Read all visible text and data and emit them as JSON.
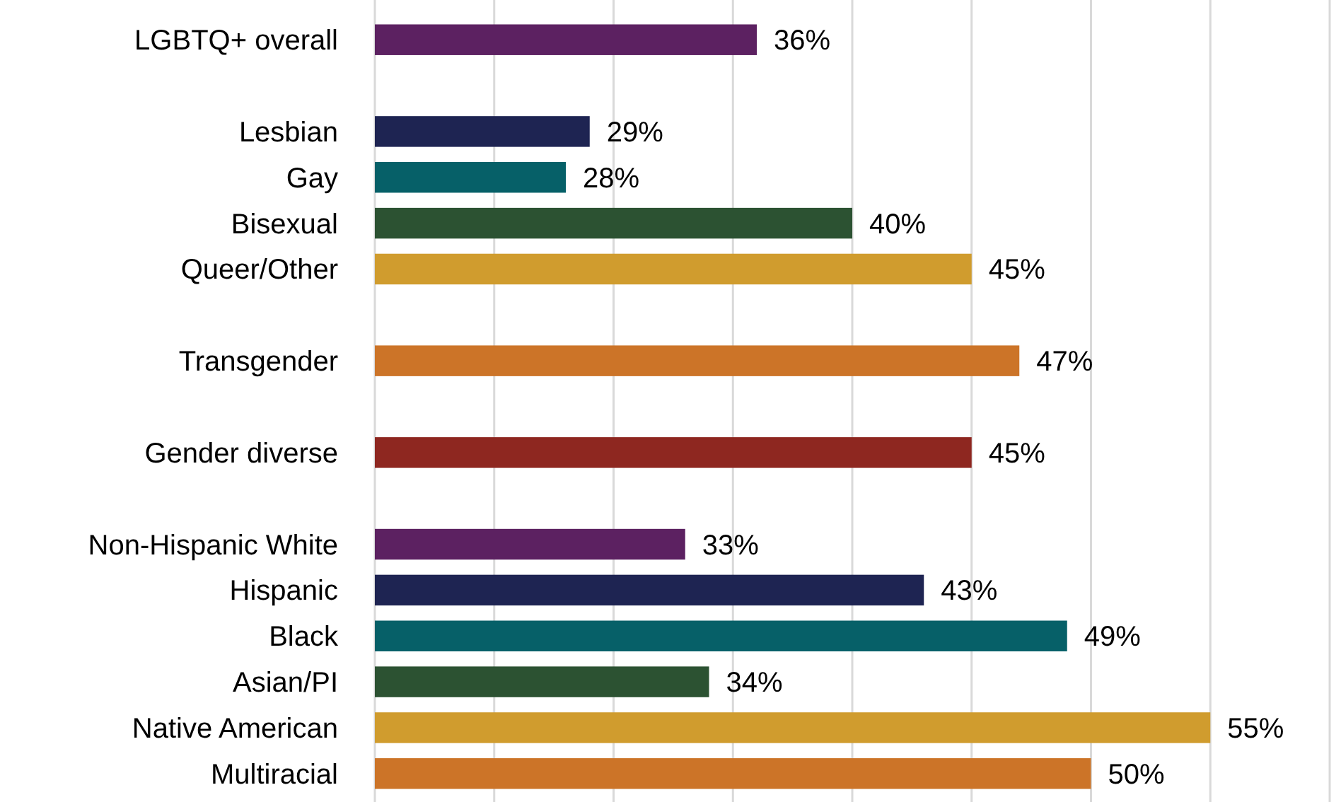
{
  "chart_data": {
    "type": "bar",
    "orientation": "horizontal",
    "categories": [
      "LGBTQ+ overall",
      null,
      "Lesbian",
      "Gay",
      "Bisexual",
      "Queer/Other",
      null,
      "Transgender",
      null,
      "Gender diverse",
      null,
      "Non-Hispanic White",
      "Hispanic",
      "Black",
      "Asian/PI",
      "Native American",
      "Multiracial"
    ],
    "values": [
      36,
      null,
      29,
      28,
      40,
      45,
      null,
      47,
      null,
      45,
      null,
      33,
      43,
      49,
      34,
      55,
      50
    ],
    "value_labels": [
      "36%",
      null,
      "29%",
      "28%",
      "40%",
      "45%",
      null,
      "47%",
      null,
      "45%",
      null,
      "33%",
      "43%",
      "49%",
      "34%",
      "55%",
      "50%"
    ],
    "colors": [
      "#5c2161",
      null,
      "#1e2452",
      "#066068",
      "#2c5232",
      "#d09c2e",
      null,
      "#cc7428",
      null,
      "#8e2720",
      null,
      "#5c2161",
      "#1e2452",
      "#066068",
      "#2c5232",
      "#d09c2e",
      "#cc7428"
    ],
    "xlim": [
      20,
      60
    ],
    "xticks": [
      {
        "value": 20,
        "label": null
      },
      {
        "value": 25,
        "label": null
      },
      {
        "value": 30,
        "label": null
      },
      {
        "value": 35,
        "label": null
      },
      {
        "value": 40,
        "label": null
      },
      {
        "value": 45,
        "label": null
      },
      {
        "value": 50,
        "label": null
      },
      {
        "value": 55,
        "label": null
      },
      {
        "value": 60,
        "label": null
      }
    ],
    "grid": "x",
    "tick_labels": "y"
  }
}
